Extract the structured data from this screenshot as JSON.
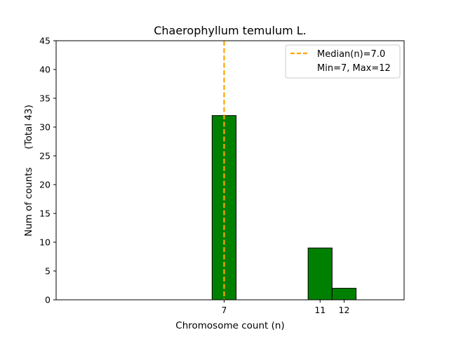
{
  "chart_data": {
    "type": "bar",
    "title": "Chaerophyllum temulum L.",
    "xlabel": "Chromosome count (n)",
    "ylabel": "Num of counts      (Total 43)",
    "x_ticks": [
      7,
      11,
      12
    ],
    "xlim": [
      0,
      14.5
    ],
    "ylim": [
      0,
      45
    ],
    "y_ticks": [
      0,
      5,
      10,
      15,
      20,
      25,
      30,
      35,
      40,
      45
    ],
    "bin_width": 1,
    "bars": [
      {
        "x": 7,
        "value": 32
      },
      {
        "x": 11,
        "value": 9
      },
      {
        "x": 12,
        "value": 2
      }
    ],
    "median_line": {
      "x": 7.0,
      "label": "Median(n)=7.0"
    },
    "legend": {
      "position": "top-right",
      "entries": [
        "Median(n)=7.0",
        "Min=7, Max=12"
      ]
    },
    "colors": {
      "bar_fill": "#008000",
      "bar_edge": "#000000",
      "median_line": "#ffa500"
    },
    "grid": false
  }
}
